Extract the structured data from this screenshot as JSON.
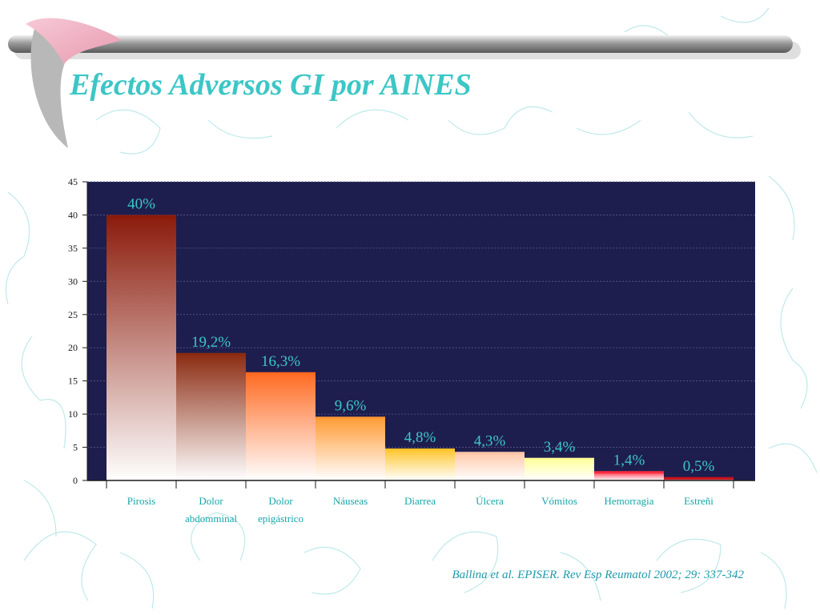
{
  "slide": {
    "title": "Efectos Adversos GI por AINES",
    "citation": "Ballina et al. EPISER. Rev Esp Reumatol 2002; 29: 337-342"
  },
  "colors": {
    "title": "#3cc6c6",
    "plot_background": "#1e1e4e",
    "data_label": "#3cc6c6",
    "category_label": "#16a6a8",
    "citation": "#1e9aaa"
  },
  "chart_data": {
    "type": "bar",
    "title": "",
    "xlabel": "",
    "ylabel": "",
    "ylim": [
      0,
      45
    ],
    "yticks": [
      0,
      5,
      10,
      15,
      20,
      25,
      30,
      35,
      40,
      45
    ],
    "grid": "horizontal dashed",
    "categories": [
      [
        "Pirosis"
      ],
      [
        "Dolor",
        "abdomminal"
      ],
      [
        "Dolor",
        "epigástrico"
      ],
      [
        "Náuseas"
      ],
      [
        "Diarrea"
      ],
      [
        "Úlcera"
      ],
      [
        "Vómitos"
      ],
      [
        "Hemorragia"
      ],
      [
        "Estreñi"
      ]
    ],
    "values": [
      40,
      19.2,
      16.3,
      9.6,
      4.8,
      4.3,
      3.4,
      1.4,
      0.5
    ],
    "data_labels": [
      "40%",
      "19,2%",
      "16,3%",
      "9,6%",
      "4,8%",
      "4,3%",
      "3,4%",
      "1,4%",
      "0,5%"
    ],
    "bar_colors": [
      "#8a1a0a",
      "#8a2a10",
      "#ff6a22",
      "#ff9a33",
      "#ffc42a",
      "#ffc7a8",
      "#ffff99",
      "#ff2a40",
      "#c8101a"
    ]
  }
}
